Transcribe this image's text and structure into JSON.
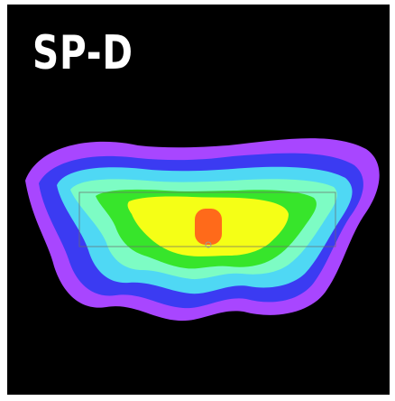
{
  "panel": {
    "label": "SP-D"
  },
  "heatmap": {
    "colors": {
      "background": "#000000",
      "outer": "#a846ff",
      "level2": "#3b3bf2",
      "level3": "#4fd8f4",
      "level4": "#7dfcc4",
      "level5": "#37e52b",
      "level6": "#f5ff16",
      "core": "#ff6a1a"
    }
  }
}
